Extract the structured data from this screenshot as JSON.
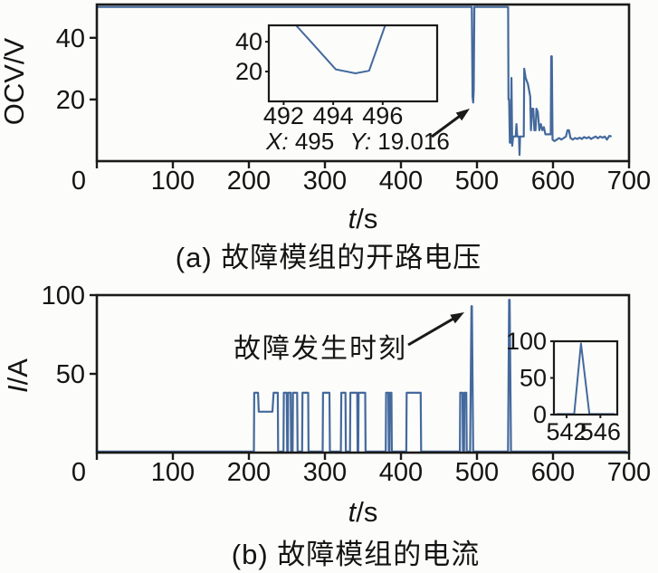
{
  "figure": {
    "background": "#fcfcfa",
    "line_color": "#44699d",
    "frame_color": "#1a1a1a",
    "text_color": "#141414"
  },
  "chart_data": [
    {
      "id": "ocv",
      "type": "line",
      "title": "(a) 故障模组的开路电压",
      "xlabel": "t/s",
      "ylabel": "OCV/V",
      "xlim": [
        0,
        700
      ],
      "ylim": [
        0,
        50.8
      ],
      "xticks": [
        0,
        100,
        200,
        300,
        400,
        500,
        600,
        700
      ],
      "yticks": [
        20,
        40
      ],
      "grid": false,
      "legend": null,
      "datatip": {
        "x_label": "X:",
        "x_value": "495",
        "y_label": "Y:",
        "y_value": "19.016"
      },
      "series": [
        {
          "name": "OCV",
          "points": [
            [
              0,
              50
            ],
            [
              493.2,
              50
            ],
            [
              494.2,
              21
            ],
            [
              495,
              19
            ],
            [
              495.7,
              23
            ],
            [
              496.6,
              50
            ],
            [
              539.5,
              50
            ],
            [
              541,
              50
            ],
            [
              541.4,
              20
            ],
            [
              542.3,
              20
            ],
            [
              543.2,
              6
            ],
            [
              544.6,
              6
            ],
            [
              545.4,
              27
            ],
            [
              546.3,
              5
            ],
            [
              547.6,
              8
            ],
            [
              551,
              8
            ],
            [
              551.9,
              12
            ],
            [
              553,
              8
            ],
            [
              555.2,
              8
            ],
            [
              555.9,
              2
            ],
            [
              556.7,
              8
            ],
            [
              561.5,
              8
            ],
            [
              562.1,
              30
            ],
            [
              564,
              27
            ],
            [
              567,
              25
            ],
            [
              570,
              21
            ],
            [
              571,
              10
            ],
            [
              572.5,
              17
            ],
            [
              574,
              17
            ],
            [
              575.5,
              10
            ],
            [
              577,
              10
            ],
            [
              578.2,
              17
            ],
            [
              580,
              16
            ],
            [
              582,
              10
            ],
            [
              584,
              12
            ],
            [
              586,
              10
            ],
            [
              588,
              11
            ],
            [
              590,
              8.7
            ],
            [
              597,
              8.7
            ],
            [
              597.6,
              34
            ],
            [
              598.5,
              34
            ],
            [
              599.4,
              7
            ],
            [
              602,
              6.5
            ],
            [
              605,
              7
            ],
            [
              608,
              7.5
            ],
            [
              611,
              7
            ],
            [
              614,
              7.5
            ],
            [
              617,
              8
            ],
            [
              619,
              10
            ],
            [
              621,
              10
            ],
            [
              623,
              7.5
            ],
            [
              626,
              7
            ],
            [
              629,
              7.5
            ],
            [
              632,
              7.2
            ],
            [
              635,
              7.6
            ],
            [
              638,
              7.2
            ],
            [
              641,
              7.8
            ],
            [
              644,
              7.4
            ],
            [
              647,
              7.8
            ],
            [
              650,
              7.2
            ],
            [
              653,
              7.6
            ],
            [
              656,
              8
            ],
            [
              659,
              7.4
            ],
            [
              662,
              8
            ],
            [
              665,
              7.6
            ],
            [
              668,
              8
            ],
            [
              671,
              7
            ],
            [
              674,
              8.2
            ],
            [
              677,
              8
            ]
          ]
        }
      ],
      "inset": {
        "xlim": [
          491.4,
          498.2
        ],
        "ylim": [
          0,
          51
        ],
        "xticks": [
          492,
          494,
          496
        ],
        "yticks": [
          20,
          40
        ],
        "points": [
          [
            492.5,
            51
          ],
          [
            493.1,
            40
          ],
          [
            494.1,
            21.5
          ],
          [
            494.9,
            18.8
          ],
          [
            495.45,
            20.5
          ],
          [
            496.1,
            51
          ]
        ]
      }
    },
    {
      "id": "current",
      "type": "line",
      "title": "(b) 故障模组的电流",
      "xlabel": "t/s",
      "ylabel": "I/A",
      "xlim": [
        0,
        700
      ],
      "ylim": [
        0,
        100
      ],
      "xticks": [
        0,
        100,
        200,
        300,
        400,
        500,
        600,
        700
      ],
      "yticks": [
        50,
        100
      ],
      "grid": false,
      "legend": null,
      "annotation": "故障发生时刻",
      "series": [
        {
          "name": "I",
          "points": [
            [
              0,
              0.7
            ],
            [
              206.5,
              0.7
            ],
            [
              207,
              38
            ],
            [
              212,
              38
            ],
            [
              213,
              26
            ],
            [
              231,
              26
            ],
            [
              232.5,
              38
            ],
            [
              238,
              38
            ],
            [
              238.5,
              0.7
            ],
            [
              245.5,
              0.7
            ],
            [
              246,
              38
            ],
            [
              249.8,
              38
            ],
            [
              250.3,
              0.7
            ],
            [
              251.2,
              0.7
            ],
            [
              251.7,
              38
            ],
            [
              255,
              38
            ],
            [
              255.5,
              0.7
            ],
            [
              257.5,
              0.7
            ],
            [
              258,
              38
            ],
            [
              263.5,
              38
            ],
            [
              264,
              0.7
            ],
            [
              270,
              0.7
            ],
            [
              270.5,
              38
            ],
            [
              278,
              38
            ],
            [
              278.5,
              0.7
            ],
            [
              297,
              0.7
            ],
            [
              297.5,
              38
            ],
            [
              306,
              38
            ],
            [
              306.5,
              0.7
            ],
            [
              321,
              0.7
            ],
            [
              321.5,
              38
            ],
            [
              327,
              38
            ],
            [
              327.5,
              0.7
            ],
            [
              333,
              0.7
            ],
            [
              333.5,
              38
            ],
            [
              342.5,
              38
            ],
            [
              343,
              0.7
            ],
            [
              343.8,
              0.7
            ],
            [
              344.3,
              38
            ],
            [
              353,
              38
            ],
            [
              353.5,
              0.7
            ],
            [
              380,
              0.7
            ],
            [
              380.5,
              38
            ],
            [
              383.5,
              38
            ],
            [
              384,
              0.7
            ],
            [
              384.8,
              0.7
            ],
            [
              385.3,
              38
            ],
            [
              387.5,
              38
            ],
            [
              388,
              0.7
            ],
            [
              407,
              0.7
            ],
            [
              407.5,
              38
            ],
            [
              426,
              38
            ],
            [
              426.5,
              0.7
            ],
            [
              477.5,
              0.7
            ],
            [
              478,
              38
            ],
            [
              481,
              38
            ],
            [
              481.5,
              0.7
            ],
            [
              483,
              0.7
            ],
            [
              483.5,
              38
            ],
            [
              486,
              38
            ],
            [
              486.5,
              0.7
            ],
            [
              491,
              0.7
            ],
            [
              492.7,
              93
            ],
            [
              493.3,
              93
            ],
            [
              495,
              0.7
            ],
            [
              540.8,
              0.7
            ],
            [
              542.3,
              97
            ],
            [
              543,
              97
            ],
            [
              544.8,
              0.7
            ],
            [
              697,
              0.7
            ]
          ]
        }
      ],
      "inset": {
        "xlim": [
          540.5,
          548
        ],
        "ylim": [
          0,
          100
        ],
        "xticks": [
          542,
          546
        ],
        "yticks": [
          0,
          50,
          100
        ],
        "points": [
          [
            540.8,
            0.7
          ],
          [
            542.9,
            0.7
          ],
          [
            543.7,
            97
          ],
          [
            544.7,
            0.7
          ],
          [
            547.7,
            0.7
          ]
        ]
      }
    }
  ]
}
